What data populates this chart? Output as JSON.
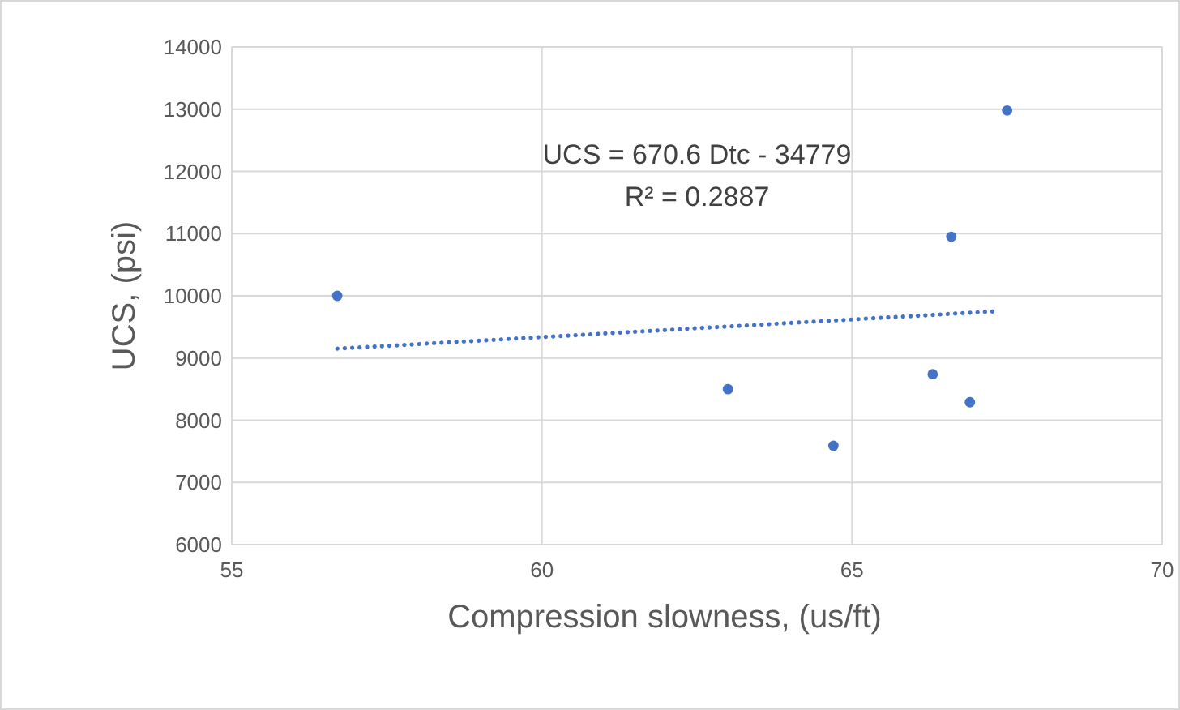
{
  "chart_data": {
    "type": "scatter",
    "xlabel": "Compression slowness, (us/ft)",
    "ylabel": "UCS, (psi)",
    "xlim": [
      55,
      70
    ],
    "xticks": [
      55,
      60,
      65,
      70
    ],
    "ylim": [
      6000,
      14000
    ],
    "yticks": [
      6000,
      7000,
      8000,
      9000,
      10000,
      11000,
      12000,
      13000,
      14000
    ],
    "grid": true,
    "series": [
      {
        "color": "#4472c4",
        "marker": "circle",
        "x": [
          56.7,
          63.0,
          64.7,
          66.3,
          66.6,
          66.9,
          67.5
        ],
        "values": [
          10000,
          8500,
          7590,
          8740,
          10950,
          8290,
          12980
        ]
      },
      {
        "type": "line",
        "color": "#4472c4",
        "marker": "none",
        "line_style": "dotted",
        "x": [
          56.7,
          67.3
        ],
        "values": [
          9150,
          9750
        ]
      }
    ],
    "annotations": [
      "UCS = 670.6 Dtc - 34779",
      "R² = 0.2887"
    ]
  }
}
